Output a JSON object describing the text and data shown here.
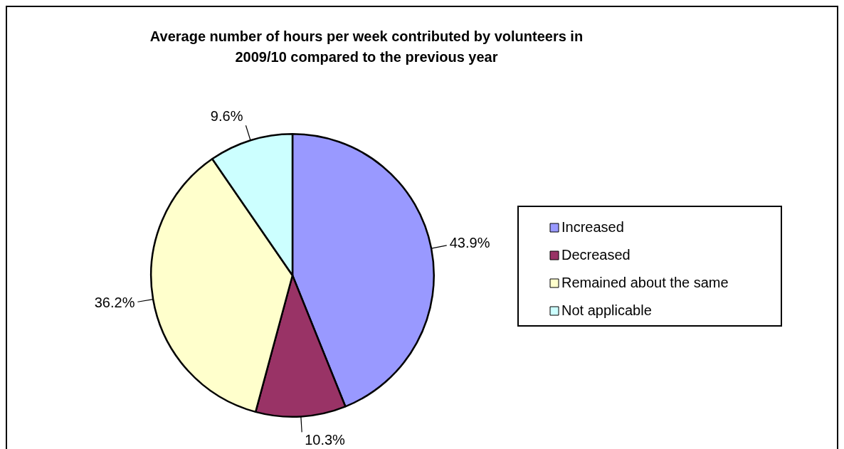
{
  "chart_data": {
    "type": "pie",
    "title": "Average number of hours per week contributed by volunteers in\n2009/10 compared to the previous year",
    "categories": [
      "Increased",
      "Decreased",
      "Remained about the same",
      "Not applicable"
    ],
    "values": [
      43.9,
      10.3,
      36.2,
      9.6
    ],
    "colors": [
      "#9999ff",
      "#993366",
      "#ffffcc",
      "#ccffff"
    ],
    "value_labels": [
      "43.9%",
      "10.3%",
      "36.2%",
      "9.6%"
    ],
    "legend": "right"
  }
}
